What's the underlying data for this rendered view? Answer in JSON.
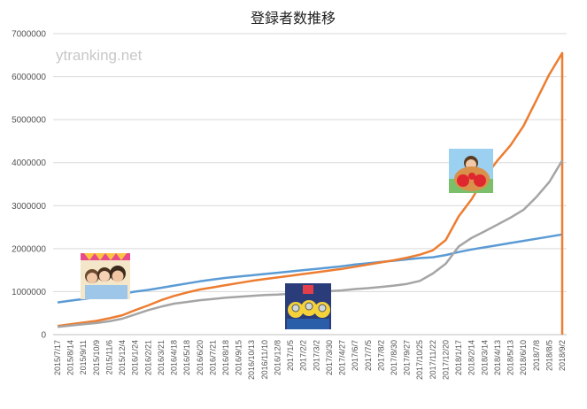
{
  "watermark": "ytranking.net",
  "colors": {
    "series_a": "#5b9bd5",
    "series_b": "#ed7d31",
    "series_c": "#a5a5a5",
    "grid": "#d9d9d9"
  },
  "chart_data": {
    "type": "line",
    "title": "登録者数推移",
    "xlabel": "",
    "ylabel": "",
    "ylim": [
      0,
      7000000
    ],
    "yticks": [
      0,
      1000000,
      2000000,
      3000000,
      4000000,
      5000000,
      6000000,
      7000000
    ],
    "grid": "horizontal",
    "legend": "none",
    "x": [
      "2015/7/17",
      "2015/8/14",
      "2015/9/11",
      "2015/10/9",
      "2015/11/6",
      "2015/12/4",
      "2016/1/24",
      "2016/2/21",
      "2016/3/21",
      "2016/4/18",
      "2016/5/18",
      "2016/6/20",
      "2016/7/21",
      "2016/8/18",
      "2016/9/15",
      "2016/10/13",
      "2016/11/10",
      "2016/12/8",
      "2017/1/5",
      "2017/2/2",
      "2017/3/2",
      "2017/3/30",
      "2017/4/27",
      "2017/6/7",
      "2017/7/5",
      "2017/8/2",
      "2017/8/30",
      "2017/9/27",
      "2017/10/25",
      "2017/11/22",
      "2017/12/20",
      "2018/1/17",
      "2018/2/14",
      "2018/3/14",
      "2018/4/13",
      "2018/5/13",
      "2018/6/10",
      "2018/7/8",
      "2018/8/5",
      "2018/9/2"
    ],
    "series": [
      {
        "color": "#5b9bd5",
        "values": [
          750000,
          790000,
          830000,
          870000,
          910000,
          950000,
          1000000,
          1040000,
          1090000,
          1140000,
          1190000,
          1240000,
          1280000,
          1320000,
          1350000,
          1380000,
          1410000,
          1440000,
          1470000,
          1500000,
          1530000,
          1560000,
          1590000,
          1630000,
          1660000,
          1690000,
          1720000,
          1750000,
          1780000,
          1800000,
          1850000,
          1920000,
          1980000,
          2030000,
          2080000,
          2130000,
          2180000,
          2230000,
          2280000,
          2330000
        ]
      },
      {
        "color": "#ed7d31",
        "values": [
          200000,
          240000,
          280000,
          320000,
          380000,
          450000,
          570000,
          680000,
          800000,
          900000,
          980000,
          1050000,
          1100000,
          1150000,
          1200000,
          1250000,
          1290000,
          1330000,
          1370000,
          1410000,
          1450000,
          1490000,
          1530000,
          1580000,
          1630000,
          1680000,
          1730000,
          1790000,
          1860000,
          1960000,
          2200000,
          2750000,
          3150000,
          3650000,
          4050000,
          4400000,
          4850000,
          5450000,
          6050000,
          6550000
        ]
      },
      {
        "color": "#a5a5a5",
        "values": [
          180000,
          210000,
          240000,
          270000,
          310000,
          370000,
          470000,
          570000,
          650000,
          720000,
          760000,
          800000,
          830000,
          860000,
          880000,
          900000,
          920000,
          930000,
          950000,
          970000,
          990000,
          1010000,
          1030000,
          1060000,
          1080000,
          1110000,
          1140000,
          1180000,
          1250000,
          1420000,
          1650000,
          2050000,
          2250000,
          2400000,
          2560000,
          2720000,
          2900000,
          3200000,
          3550000,
          4050000
        ]
      }
    ]
  }
}
